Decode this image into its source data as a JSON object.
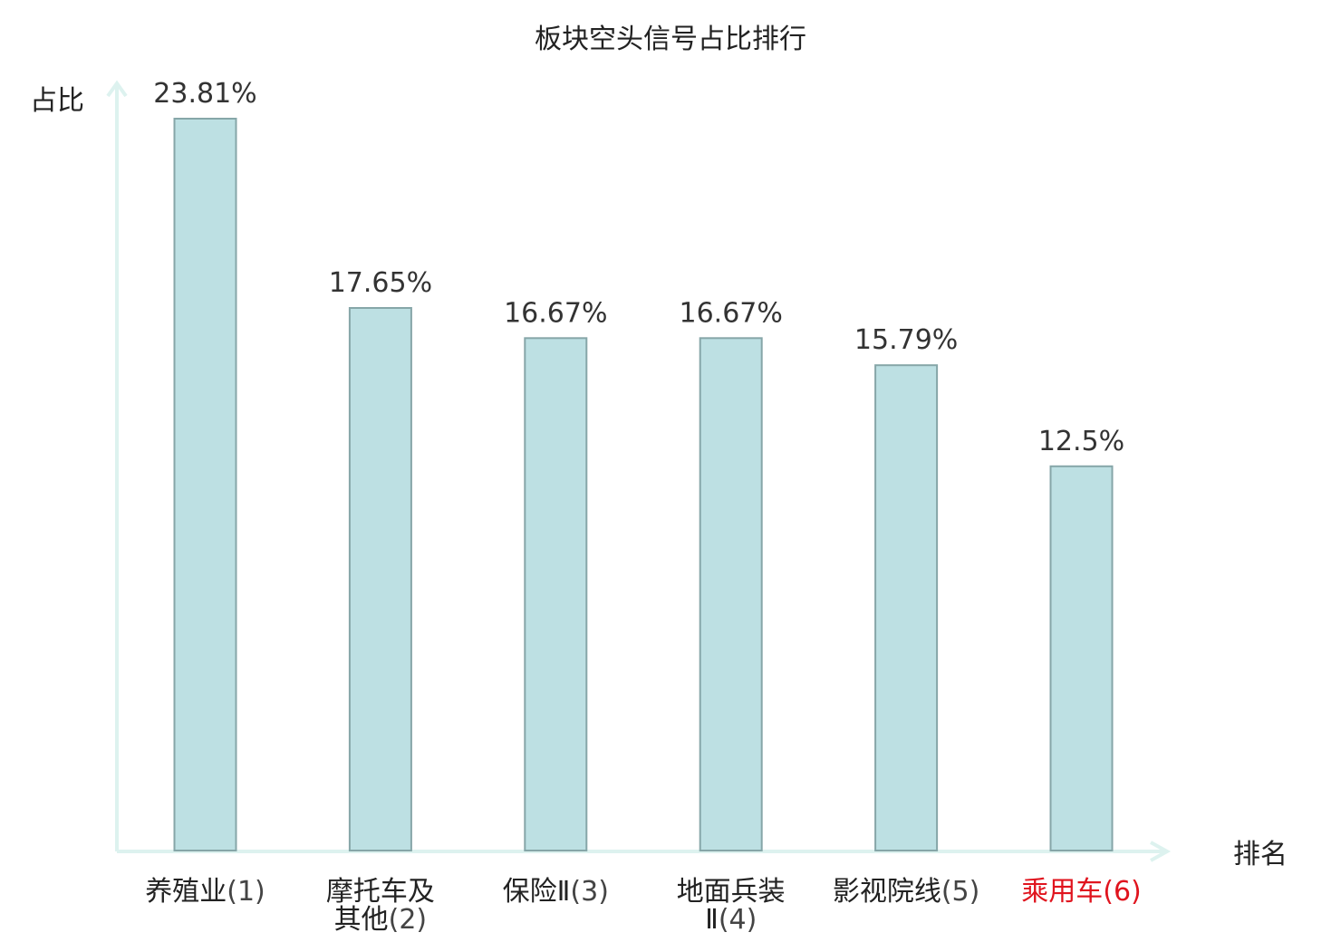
{
  "chart_data": {
    "type": "bar",
    "title": "板块空头信号占比排行",
    "ylabel": "占比",
    "xlabel": "排名",
    "ylim": [
      0,
      25
    ],
    "grid": false,
    "legend": "none",
    "categories": [
      {
        "lines": [
          "养殖业"
        ],
        "rank": "(1)",
        "highlight": false
      },
      {
        "lines": [
          "摩托车及",
          "其他"
        ],
        "rank": "(2)",
        "highlight": false
      },
      {
        "lines": [
          "保险Ⅱ"
        ],
        "rank": "(3)",
        "highlight": false
      },
      {
        "lines": [
          "地面兵装",
          "Ⅱ"
        ],
        "rank": "(4)",
        "highlight": false
      },
      {
        "lines": [
          "影视院线"
        ],
        "rank": "(5)",
        "highlight": false
      },
      {
        "lines": [
          "乘用车"
        ],
        "rank": "(6)",
        "highlight": true
      }
    ],
    "values": [
      23.81,
      17.65,
      16.67,
      16.67,
      15.79,
      12.5
    ],
    "value_labels": [
      "23.81%",
      "17.65%",
      "16.67%",
      "16.67%",
      "15.79%",
      "12.5%"
    ],
    "colors": {
      "bar_fill": "#bde0e3",
      "bar_stroke": "#86a6a8",
      "axis": "#ddf2ef",
      "highlight_text": "#e0141e"
    }
  }
}
